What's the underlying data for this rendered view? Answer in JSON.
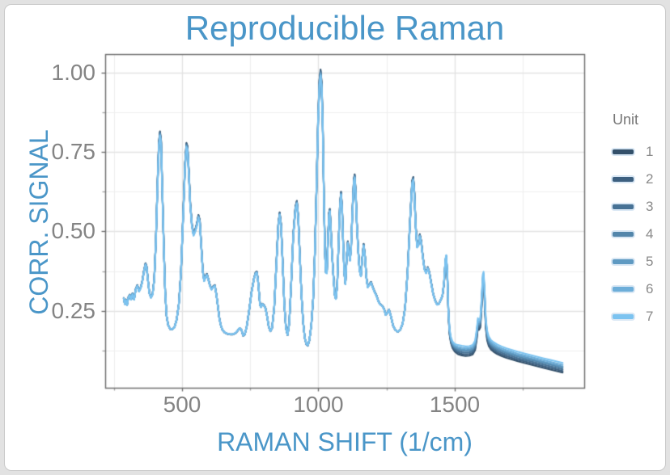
{
  "figure": {
    "title": "Reproducible Raman",
    "x_label": "RAMAN SHIFT (1/cm)",
    "y_label": "CORR. SIGNAL"
  },
  "legend": {
    "title": "Unit",
    "items": [
      {
        "label": "1",
        "color": "#33506a"
      },
      {
        "label": "2",
        "color": "#3d6080"
      },
      {
        "label": "3",
        "color": "#477295"
      },
      {
        "label": "4",
        "color": "#5386ab"
      },
      {
        "label": "5",
        "color": "#5f9ac2"
      },
      {
        "label": "6",
        "color": "#6daed9"
      },
      {
        "label": "7",
        "color": "#7cc3f0"
      }
    ]
  },
  "colors": {
    "title_blue": "#4a96c8",
    "axis_tick_text": "#848484",
    "legend_text": "#8a8a8a",
    "legend_title_text": "#767676",
    "panel_border": "#6f6f6f",
    "grid_major": "#e3e3e3",
    "grid_minor": "#eeeeee",
    "frame_background": "#e2e2e2",
    "card_background": "#ffffff"
  },
  "chart_data": {
    "type": "line",
    "title": "Reproducible Raman",
    "xlabel": "RAMAN SHIFT (1/cm)",
    "ylabel": "CORR. SIGNAL",
    "xlim": [
      218,
      1975
    ],
    "ylim": [
      0.008,
      1.058
    ],
    "grid": true,
    "legend_position": "right",
    "legend_title": "Unit",
    "x_major_ticks": [
      500,
      1000,
      1500
    ],
    "x_tick_labels": [
      "500",
      "1000",
      "1500"
    ],
    "x_minor_gridlines": [
      250,
      750,
      1250,
      1750
    ],
    "y_major_ticks": [
      0.25,
      0.5,
      0.75,
      1.0
    ],
    "y_tick_labels": [
      "0.25",
      "0.50",
      "0.75",
      "1.00"
    ],
    "y_minor_gridlines": [
      0.125,
      0.375,
      0.625,
      0.875
    ],
    "series_note": "7 near-identical spectra (units 1-7); amp scales peak amplitude about baseline 0.21, tail_offset shifts curves apart beyond ~1450 1/cm",
    "series": [
      {
        "name": "1",
        "color": "#33506a",
        "amp": 1.012,
        "tail_offset": -0.015
      },
      {
        "name": "2",
        "color": "#3d6080",
        "amp": 1.008,
        "tail_offset": -0.01
      },
      {
        "name": "3",
        "color": "#477295",
        "amp": 1.004,
        "tail_offset": -0.005
      },
      {
        "name": "4",
        "color": "#5386ab",
        "amp": 1.0,
        "tail_offset": 0.0
      },
      {
        "name": "5",
        "color": "#5f9ac2",
        "amp": 0.996,
        "tail_offset": 0.004
      },
      {
        "name": "6",
        "color": "#6daed9",
        "amp": 0.992,
        "tail_offset": 0.009
      },
      {
        "name": "7",
        "color": "#7cc3f0",
        "amp": 0.988,
        "tail_offset": 0.015
      }
    ],
    "base_trace": [
      [
        286,
        0.29
      ],
      [
        290,
        0.272
      ],
      [
        294,
        0.285
      ],
      [
        298,
        0.268
      ],
      [
        303,
        0.292
      ],
      [
        308,
        0.3
      ],
      [
        313,
        0.286
      ],
      [
        318,
        0.304
      ],
      [
        324,
        0.286
      ],
      [
        330,
        0.318
      ],
      [
        336,
        0.33
      ],
      [
        342,
        0.312
      ],
      [
        348,
        0.322
      ],
      [
        354,
        0.342
      ],
      [
        360,
        0.374
      ],
      [
        366,
        0.398
      ],
      [
        370,
        0.388
      ],
      [
        375,
        0.345
      ],
      [
        380,
        0.306
      ],
      [
        386,
        0.292
      ],
      [
        392,
        0.303
      ],
      [
        398,
        0.35
      ],
      [
        404,
        0.47
      ],
      [
        410,
        0.65
      ],
      [
        415,
        0.775
      ],
      [
        419,
        0.808
      ],
      [
        423,
        0.78
      ],
      [
        427,
        0.645
      ],
      [
        433,
        0.45
      ],
      [
        438,
        0.31
      ],
      [
        443,
        0.235
      ],
      [
        449,
        0.205
      ],
      [
        456,
        0.193
      ],
      [
        464,
        0.192
      ],
      [
        472,
        0.198
      ],
      [
        480,
        0.222
      ],
      [
        488,
        0.27
      ],
      [
        496,
        0.37
      ],
      [
        504,
        0.55
      ],
      [
        511,
        0.71
      ],
      [
        516,
        0.772
      ],
      [
        520,
        0.762
      ],
      [
        525,
        0.68
      ],
      [
        530,
        0.585
      ],
      [
        536,
        0.52
      ],
      [
        542,
        0.49
      ],
      [
        548,
        0.502
      ],
      [
        554,
        0.52
      ],
      [
        560,
        0.548
      ],
      [
        565,
        0.532
      ],
      [
        570,
        0.46
      ],
      [
        576,
        0.375
      ],
      [
        581,
        0.345
      ],
      [
        586,
        0.358
      ],
      [
        591,
        0.365
      ],
      [
        596,
        0.35
      ],
      [
        602,
        0.33
      ],
      [
        608,
        0.318
      ],
      [
        614,
        0.326
      ],
      [
        620,
        0.33
      ],
      [
        626,
        0.3
      ],
      [
        632,
        0.26
      ],
      [
        637,
        0.225
      ],
      [
        642,
        0.205
      ],
      [
        648,
        0.19
      ],
      [
        656,
        0.182
      ],
      [
        666,
        0.178
      ],
      [
        676,
        0.176
      ],
      [
        686,
        0.176
      ],
      [
        696,
        0.18
      ],
      [
        704,
        0.188
      ],
      [
        711,
        0.196
      ],
      [
        718,
        0.19
      ],
      [
        724,
        0.172
      ],
      [
        730,
        0.176
      ],
      [
        737,
        0.2
      ],
      [
        745,
        0.245
      ],
      [
        755,
        0.31
      ],
      [
        764,
        0.352
      ],
      [
        770,
        0.37
      ],
      [
        774,
        0.372
      ],
      [
        778,
        0.35
      ],
      [
        782,
        0.31
      ],
      [
        786,
        0.268
      ],
      [
        790,
        0.262
      ],
      [
        794,
        0.272
      ],
      [
        800,
        0.268
      ],
      [
        806,
        0.258
      ],
      [
        812,
        0.232
      ],
      [
        818,
        0.2
      ],
      [
        824,
        0.186
      ],
      [
        830,
        0.196
      ],
      [
        838,
        0.26
      ],
      [
        846,
        0.4
      ],
      [
        853,
        0.52
      ],
      [
        858,
        0.556
      ],
      [
        863,
        0.52
      ],
      [
        869,
        0.4
      ],
      [
        875,
        0.27
      ],
      [
        881,
        0.196
      ],
      [
        887,
        0.174
      ],
      [
        893,
        0.21
      ],
      [
        900,
        0.33
      ],
      [
        908,
        0.49
      ],
      [
        916,
        0.575
      ],
      [
        921,
        0.592
      ],
      [
        926,
        0.545
      ],
      [
        932,
        0.42
      ],
      [
        938,
        0.3
      ],
      [
        944,
        0.215
      ],
      [
        950,
        0.165
      ],
      [
        956,
        0.145
      ],
      [
        961,
        0.141
      ],
      [
        967,
        0.158
      ],
      [
        974,
        0.205
      ],
      [
        981,
        0.29
      ],
      [
        987,
        0.43
      ],
      [
        993,
        0.63
      ],
      [
        999,
        0.85
      ],
      [
        1004,
        0.97
      ],
      [
        1008,
        1.0
      ],
      [
        1012,
        0.96
      ],
      [
        1016,
        0.83
      ],
      [
        1020,
        0.62
      ],
      [
        1024,
        0.44
      ],
      [
        1027,
        0.372
      ],
      [
        1031,
        0.37
      ],
      [
        1035,
        0.47
      ],
      [
        1039,
        0.555
      ],
      [
        1042,
        0.567
      ],
      [
        1046,
        0.5
      ],
      [
        1050,
        0.43
      ],
      [
        1055,
        0.36
      ],
      [
        1060,
        0.3
      ],
      [
        1064,
        0.288
      ],
      [
        1069,
        0.33
      ],
      [
        1074,
        0.46
      ],
      [
        1079,
        0.58
      ],
      [
        1083,
        0.62
      ],
      [
        1087,
        0.57
      ],
      [
        1091,
        0.46
      ],
      [
        1095,
        0.37
      ],
      [
        1099,
        0.335
      ],
      [
        1104,
        0.42
      ],
      [
        1108,
        0.466
      ],
      [
        1112,
        0.437
      ],
      [
        1116,
        0.41
      ],
      [
        1120,
        0.45
      ],
      [
        1125,
        0.565
      ],
      [
        1130,
        0.66
      ],
      [
        1133,
        0.674
      ],
      [
        1137,
        0.62
      ],
      [
        1141,
        0.525
      ],
      [
        1146,
        0.44
      ],
      [
        1151,
        0.378
      ],
      [
        1156,
        0.36
      ],
      [
        1161,
        0.415
      ],
      [
        1166,
        0.458
      ],
      [
        1171,
        0.42
      ],
      [
        1176,
        0.355
      ],
      [
        1181,
        0.325
      ],
      [
        1187,
        0.333
      ],
      [
        1193,
        0.34
      ],
      [
        1199,
        0.325
      ],
      [
        1206,
        0.31
      ],
      [
        1213,
        0.298
      ],
      [
        1220,
        0.28
      ],
      [
        1227,
        0.27
      ],
      [
        1234,
        0.266
      ],
      [
        1241,
        0.256
      ],
      [
        1247,
        0.237
      ],
      [
        1253,
        0.244
      ],
      [
        1259,
        0.254
      ],
      [
        1266,
        0.233
      ],
      [
        1274,
        0.203
      ],
      [
        1282,
        0.19
      ],
      [
        1291,
        0.184
      ],
      [
        1300,
        0.19
      ],
      [
        1309,
        0.21
      ],
      [
        1318,
        0.26
      ],
      [
        1327,
        0.37
      ],
      [
        1336,
        0.53
      ],
      [
        1344,
        0.655
      ],
      [
        1348,
        0.666
      ],
      [
        1352,
        0.62
      ],
      [
        1357,
        0.515
      ],
      [
        1362,
        0.452
      ],
      [
        1367,
        0.458
      ],
      [
        1372,
        0.488
      ],
      [
        1377,
        0.468
      ],
      [
        1383,
        0.42
      ],
      [
        1389,
        0.382
      ],
      [
        1395,
        0.37
      ],
      [
        1401,
        0.386
      ],
      [
        1407,
        0.37
      ],
      [
        1414,
        0.336
      ],
      [
        1421,
        0.303
      ],
      [
        1428,
        0.283
      ],
      [
        1435,
        0.27
      ],
      [
        1442,
        0.272
      ],
      [
        1449,
        0.285
      ],
      [
        1455,
        0.298
      ],
      [
        1461,
        0.34
      ],
      [
        1466,
        0.41
      ],
      [
        1469,
        0.422
      ],
      [
        1473,
        0.36
      ],
      [
        1477,
        0.245
      ],
      [
        1481,
        0.185
      ],
      [
        1486,
        0.158
      ],
      [
        1492,
        0.143
      ],
      [
        1500,
        0.134
      ],
      [
        1512,
        0.128
      ],
      [
        1526,
        0.125
      ],
      [
        1540,
        0.123
      ],
      [
        1554,
        0.124
      ],
      [
        1566,
        0.128
      ],
      [
        1575,
        0.142
      ],
      [
        1581,
        0.178
      ],
      [
        1585,
        0.212
      ],
      [
        1589,
        0.205
      ],
      [
        1594,
        0.213
      ],
      [
        1599,
        0.28
      ],
      [
        1603,
        0.35
      ],
      [
        1606,
        0.358
      ],
      [
        1610,
        0.29
      ],
      [
        1614,
        0.21
      ],
      [
        1619,
        0.172
      ],
      [
        1625,
        0.154
      ],
      [
        1633,
        0.143
      ],
      [
        1643,
        0.136
      ],
      [
        1656,
        0.129
      ],
      [
        1672,
        0.123
      ],
      [
        1690,
        0.117
      ],
      [
        1710,
        0.112
      ],
      [
        1732,
        0.106
      ],
      [
        1755,
        0.101
      ],
      [
        1778,
        0.096
      ],
      [
        1801,
        0.091
      ],
      [
        1824,
        0.086
      ],
      [
        1848,
        0.081
      ],
      [
        1872,
        0.076
      ],
      [
        1896,
        0.071
      ]
    ]
  }
}
